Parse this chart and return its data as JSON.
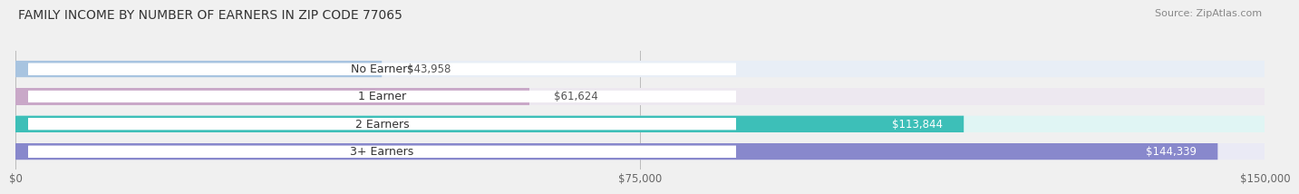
{
  "title": "FAMILY INCOME BY NUMBER OF EARNERS IN ZIP CODE 77065",
  "source": "Source: ZipAtlas.com",
  "categories": [
    "No Earners",
    "1 Earner",
    "2 Earners",
    "3+ Earners"
  ],
  "values": [
    43958,
    61624,
    113844,
    144339
  ],
  "value_labels": [
    "$43,958",
    "$61,624",
    "$113,844",
    "$144,339"
  ],
  "bar_colors": [
    "#a8c4e0",
    "#c9a8c8",
    "#3dbfb8",
    "#8888cc"
  ],
  "bar_bg_colors": [
    "#e8eef6",
    "#ede8f0",
    "#e0f5f4",
    "#eaeaf5"
  ],
  "background_color": "#f0f0f0",
  "xlim": [
    0,
    150000
  ],
  "xticks": [
    0,
    75000,
    150000
  ],
  "xtick_labels": [
    "$0",
    "$75,000",
    "$150,000"
  ],
  "title_fontsize": 10,
  "source_fontsize": 8,
  "bar_label_fontsize": 9,
  "value_label_fontsize": 8.5,
  "tick_fontsize": 8.5,
  "value_white_threshold": 0.55
}
